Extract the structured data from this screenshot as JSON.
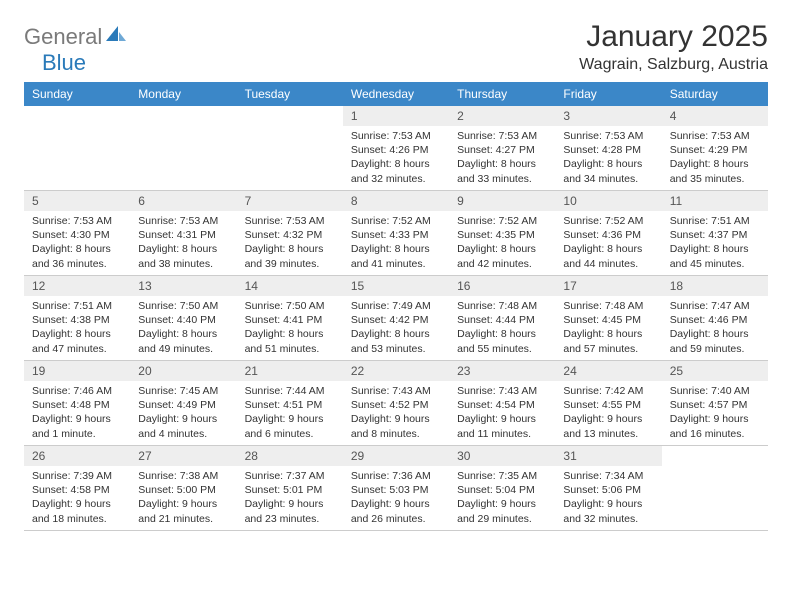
{
  "brand": {
    "part1": "General",
    "part2": "Blue"
  },
  "title": "January 2025",
  "location": "Wagrain, Salzburg, Austria",
  "colors": {
    "header_blue": "#3b87c8",
    "daynum_bg": "#eeeeee",
    "border": "#cccccc",
    "text": "#333333",
    "logo_gray": "#7a7a7a",
    "logo_blue": "#2a7ab9"
  },
  "weekdays": [
    "Sunday",
    "Monday",
    "Tuesday",
    "Wednesday",
    "Thursday",
    "Friday",
    "Saturday"
  ],
  "weeks": [
    [
      {
        "n": "",
        "sr": "",
        "ss": "",
        "dl": ""
      },
      {
        "n": "",
        "sr": "",
        "ss": "",
        "dl": ""
      },
      {
        "n": "",
        "sr": "",
        "ss": "",
        "dl": ""
      },
      {
        "n": "1",
        "sr": "Sunrise: 7:53 AM",
        "ss": "Sunset: 4:26 PM",
        "dl": "Daylight: 8 hours and 32 minutes."
      },
      {
        "n": "2",
        "sr": "Sunrise: 7:53 AM",
        "ss": "Sunset: 4:27 PM",
        "dl": "Daylight: 8 hours and 33 minutes."
      },
      {
        "n": "3",
        "sr": "Sunrise: 7:53 AM",
        "ss": "Sunset: 4:28 PM",
        "dl": "Daylight: 8 hours and 34 minutes."
      },
      {
        "n": "4",
        "sr": "Sunrise: 7:53 AM",
        "ss": "Sunset: 4:29 PM",
        "dl": "Daylight: 8 hours and 35 minutes."
      }
    ],
    [
      {
        "n": "5",
        "sr": "Sunrise: 7:53 AM",
        "ss": "Sunset: 4:30 PM",
        "dl": "Daylight: 8 hours and 36 minutes."
      },
      {
        "n": "6",
        "sr": "Sunrise: 7:53 AM",
        "ss": "Sunset: 4:31 PM",
        "dl": "Daylight: 8 hours and 38 minutes."
      },
      {
        "n": "7",
        "sr": "Sunrise: 7:53 AM",
        "ss": "Sunset: 4:32 PM",
        "dl": "Daylight: 8 hours and 39 minutes."
      },
      {
        "n": "8",
        "sr": "Sunrise: 7:52 AM",
        "ss": "Sunset: 4:33 PM",
        "dl": "Daylight: 8 hours and 41 minutes."
      },
      {
        "n": "9",
        "sr": "Sunrise: 7:52 AM",
        "ss": "Sunset: 4:35 PM",
        "dl": "Daylight: 8 hours and 42 minutes."
      },
      {
        "n": "10",
        "sr": "Sunrise: 7:52 AM",
        "ss": "Sunset: 4:36 PM",
        "dl": "Daylight: 8 hours and 44 minutes."
      },
      {
        "n": "11",
        "sr": "Sunrise: 7:51 AM",
        "ss": "Sunset: 4:37 PM",
        "dl": "Daylight: 8 hours and 45 minutes."
      }
    ],
    [
      {
        "n": "12",
        "sr": "Sunrise: 7:51 AM",
        "ss": "Sunset: 4:38 PM",
        "dl": "Daylight: 8 hours and 47 minutes."
      },
      {
        "n": "13",
        "sr": "Sunrise: 7:50 AM",
        "ss": "Sunset: 4:40 PM",
        "dl": "Daylight: 8 hours and 49 minutes."
      },
      {
        "n": "14",
        "sr": "Sunrise: 7:50 AM",
        "ss": "Sunset: 4:41 PM",
        "dl": "Daylight: 8 hours and 51 minutes."
      },
      {
        "n": "15",
        "sr": "Sunrise: 7:49 AM",
        "ss": "Sunset: 4:42 PM",
        "dl": "Daylight: 8 hours and 53 minutes."
      },
      {
        "n": "16",
        "sr": "Sunrise: 7:48 AM",
        "ss": "Sunset: 4:44 PM",
        "dl": "Daylight: 8 hours and 55 minutes."
      },
      {
        "n": "17",
        "sr": "Sunrise: 7:48 AM",
        "ss": "Sunset: 4:45 PM",
        "dl": "Daylight: 8 hours and 57 minutes."
      },
      {
        "n": "18",
        "sr": "Sunrise: 7:47 AM",
        "ss": "Sunset: 4:46 PM",
        "dl": "Daylight: 8 hours and 59 minutes."
      }
    ],
    [
      {
        "n": "19",
        "sr": "Sunrise: 7:46 AM",
        "ss": "Sunset: 4:48 PM",
        "dl": "Daylight: 9 hours and 1 minute."
      },
      {
        "n": "20",
        "sr": "Sunrise: 7:45 AM",
        "ss": "Sunset: 4:49 PM",
        "dl": "Daylight: 9 hours and 4 minutes."
      },
      {
        "n": "21",
        "sr": "Sunrise: 7:44 AM",
        "ss": "Sunset: 4:51 PM",
        "dl": "Daylight: 9 hours and 6 minutes."
      },
      {
        "n": "22",
        "sr": "Sunrise: 7:43 AM",
        "ss": "Sunset: 4:52 PM",
        "dl": "Daylight: 9 hours and 8 minutes."
      },
      {
        "n": "23",
        "sr": "Sunrise: 7:43 AM",
        "ss": "Sunset: 4:54 PM",
        "dl": "Daylight: 9 hours and 11 minutes."
      },
      {
        "n": "24",
        "sr": "Sunrise: 7:42 AM",
        "ss": "Sunset: 4:55 PM",
        "dl": "Daylight: 9 hours and 13 minutes."
      },
      {
        "n": "25",
        "sr": "Sunrise: 7:40 AM",
        "ss": "Sunset: 4:57 PM",
        "dl": "Daylight: 9 hours and 16 minutes."
      }
    ],
    [
      {
        "n": "26",
        "sr": "Sunrise: 7:39 AM",
        "ss": "Sunset: 4:58 PM",
        "dl": "Daylight: 9 hours and 18 minutes."
      },
      {
        "n": "27",
        "sr": "Sunrise: 7:38 AM",
        "ss": "Sunset: 5:00 PM",
        "dl": "Daylight: 9 hours and 21 minutes."
      },
      {
        "n": "28",
        "sr": "Sunrise: 7:37 AM",
        "ss": "Sunset: 5:01 PM",
        "dl": "Daylight: 9 hours and 23 minutes."
      },
      {
        "n": "29",
        "sr": "Sunrise: 7:36 AM",
        "ss": "Sunset: 5:03 PM",
        "dl": "Daylight: 9 hours and 26 minutes."
      },
      {
        "n": "30",
        "sr": "Sunrise: 7:35 AM",
        "ss": "Sunset: 5:04 PM",
        "dl": "Daylight: 9 hours and 29 minutes."
      },
      {
        "n": "31",
        "sr": "Sunrise: 7:34 AM",
        "ss": "Sunset: 5:06 PM",
        "dl": "Daylight: 9 hours and 32 minutes."
      },
      {
        "n": "",
        "sr": "",
        "ss": "",
        "dl": ""
      }
    ]
  ]
}
